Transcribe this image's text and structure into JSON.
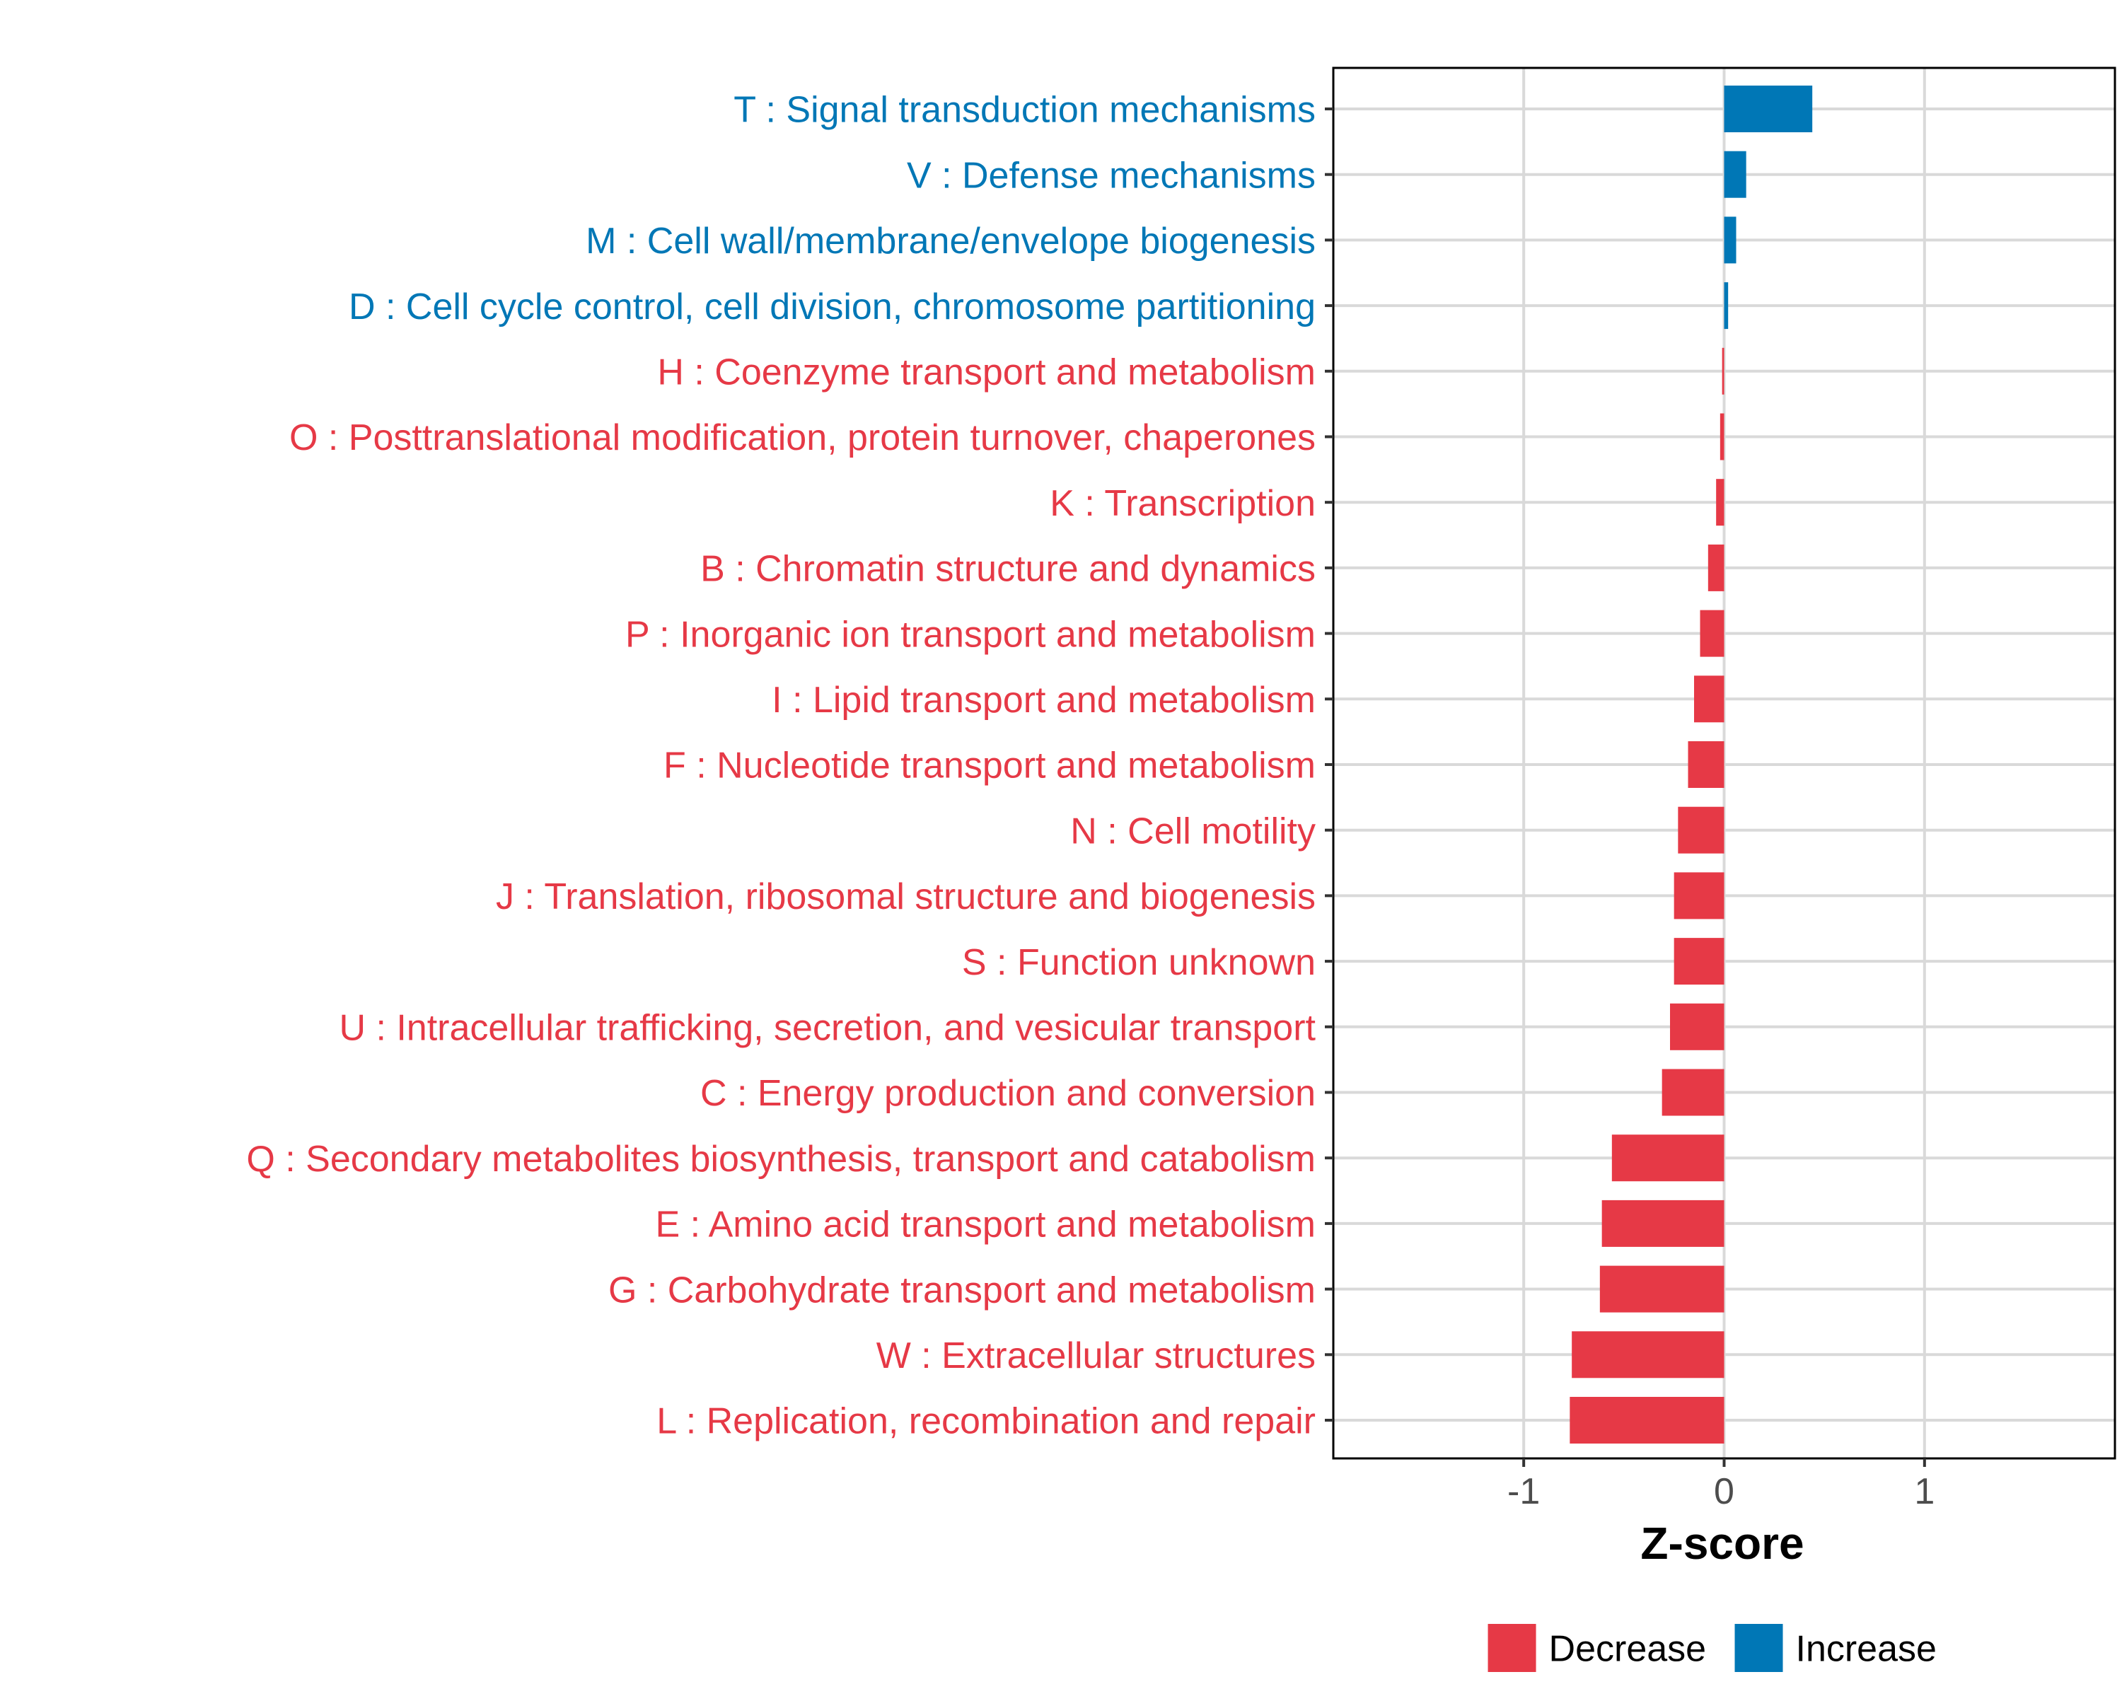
{
  "colors": {
    "decrease": "#E63946",
    "increase": "#0077B6",
    "grid": "#D9D9D9",
    "axis_text": "#4D4D4D",
    "frame": "#000000"
  },
  "chart_data": {
    "type": "bar",
    "orientation": "horizontal",
    "xlabel": "Z-score",
    "ylabel": "",
    "xlim": [
      -1.95,
      1.95
    ],
    "xticks": [
      {
        "value": -1,
        "label": "-1"
      },
      {
        "value": 0,
        "label": "0"
      },
      {
        "value": 1,
        "label": "1"
      }
    ],
    "grid": true,
    "legend": {
      "position": "bottom",
      "entries": [
        {
          "name": "Decrease",
          "color_key": "decrease"
        },
        {
          "name": "Increase",
          "color_key": "increase"
        }
      ]
    },
    "categories": [
      {
        "label": "T : Signal transduction mechanisms",
        "value": 0.44,
        "group": "Increase"
      },
      {
        "label": "V : Defense mechanisms",
        "value": 0.11,
        "group": "Increase"
      },
      {
        "label": "M : Cell wall/membrane/envelope biogenesis",
        "value": 0.06,
        "group": "Increase"
      },
      {
        "label": "D : Cell cycle control, cell division, chromosome partitioning",
        "value": 0.02,
        "group": "Increase"
      },
      {
        "label": "H : Coenzyme transport and metabolism",
        "value": -0.01,
        "group": "Decrease"
      },
      {
        "label": "O : Posttranslational modification, protein turnover, chaperones",
        "value": -0.02,
        "group": "Decrease"
      },
      {
        "label": "K : Transcription",
        "value": -0.04,
        "group": "Decrease"
      },
      {
        "label": "B : Chromatin structure and dynamics",
        "value": -0.08,
        "group": "Decrease"
      },
      {
        "label": "P : Inorganic ion transport and metabolism",
        "value": -0.12,
        "group": "Decrease"
      },
      {
        "label": "I : Lipid transport and metabolism",
        "value": -0.15,
        "group": "Decrease"
      },
      {
        "label": "F : Nucleotide transport and metabolism",
        "value": -0.18,
        "group": "Decrease"
      },
      {
        "label": "N : Cell motility",
        "value": -0.23,
        "group": "Decrease"
      },
      {
        "label": "J : Translation, ribosomal structure and biogenesis",
        "value": -0.25,
        "group": "Decrease"
      },
      {
        "label": "S : Function unknown",
        "value": -0.25,
        "group": "Decrease"
      },
      {
        "label": "U : Intracellular trafficking, secretion, and vesicular transport",
        "value": -0.27,
        "group": "Decrease"
      },
      {
        "label": "C : Energy production and conversion",
        "value": -0.31,
        "group": "Decrease"
      },
      {
        "label": "Q : Secondary metabolites biosynthesis, transport and catabolism",
        "value": -0.56,
        "group": "Decrease"
      },
      {
        "label": "E : Amino acid transport and metabolism",
        "value": -0.61,
        "group": "Decrease"
      },
      {
        "label": "G : Carbohydrate transport and metabolism",
        "value": -0.62,
        "group": "Decrease"
      },
      {
        "label": "W : Extracellular structures",
        "value": -0.76,
        "group": "Decrease"
      },
      {
        "label": "L : Replication, recombination and repair",
        "value": -0.77,
        "group": "Decrease"
      }
    ]
  }
}
